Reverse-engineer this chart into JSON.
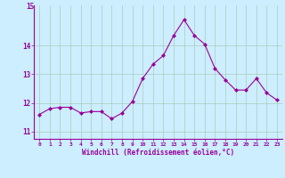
{
  "x": [
    0,
    1,
    2,
    3,
    4,
    5,
    6,
    7,
    8,
    9,
    10,
    11,
    12,
    13,
    14,
    15,
    16,
    17,
    18,
    19,
    20,
    21,
    22,
    23
  ],
  "y": [
    11.6,
    11.8,
    11.85,
    11.85,
    11.65,
    11.7,
    11.7,
    11.45,
    11.65,
    12.05,
    12.85,
    13.35,
    13.65,
    14.35,
    14.9,
    14.35,
    14.05,
    13.2,
    12.8,
    12.45,
    12.45,
    12.85,
    12.35,
    12.1
  ],
  "line_color": "#990099",
  "marker": "D",
  "markersize": 2.0,
  "linewidth": 0.8,
  "bg_color": "#cceeff",
  "grid_color": "#aaccbb",
  "xlabel": "Windchill (Refroidissement éolien,°C)",
  "xlabel_color": "#990099",
  "tick_color": "#990099",
  "spine_color": "#990099",
  "ylim": [
    10.75,
    15.4
  ],
  "yticks": [
    11,
    12,
    13,
    14
  ],
  "ytick_labels": [
    "11",
    "12",
    "13",
    "14"
  ],
  "y_top_label": "15",
  "xlim": [
    -0.5,
    23.5
  ],
  "figwidth": 3.2,
  "figheight": 2.0,
  "dpi": 100
}
